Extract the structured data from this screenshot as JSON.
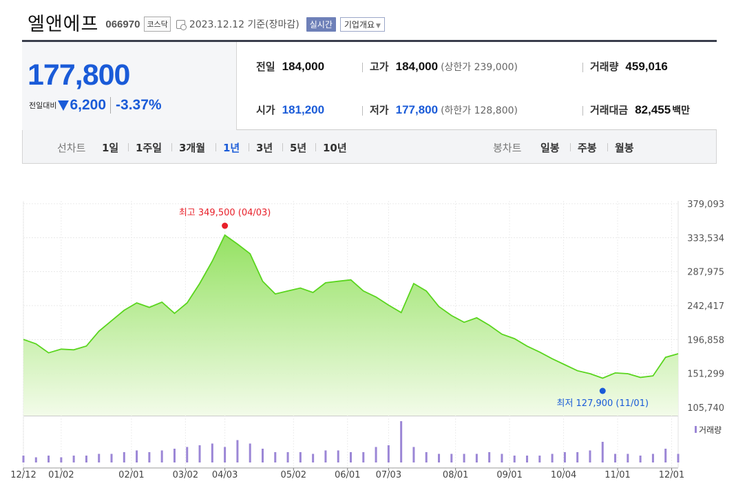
{
  "header": {
    "name": "엘앤에프",
    "code": "066970",
    "market": "코스닥",
    "date": "2023.12.12 기준(장마감)",
    "realtime": "실시간",
    "overview": "기업개요"
  },
  "quote": {
    "price": "177,800",
    "change_label": "전일대비",
    "change": "6,200",
    "percent": "-3.37%",
    "prev_close_label": "전일",
    "prev_close": "184,000",
    "high_label": "고가",
    "high": "184,000",
    "upper_limit": "(상한가 239,000)",
    "volume_label": "거래량",
    "volume": "459,016",
    "open_label": "시가",
    "open": "181,200",
    "low_label": "저가",
    "low": "177,800",
    "lower_limit": "(하한가 128,800)",
    "amount_label": "거래대금",
    "amount": "82,455",
    "amount_unit": "백만"
  },
  "tabs": {
    "line_label": "선차트",
    "line_periods": [
      "1일",
      "1주일",
      "3개월",
      "1년",
      "3년",
      "5년",
      "10년"
    ],
    "selected": "1년",
    "candle_label": "봉차트",
    "candle_periods": [
      "일봉",
      "주봉",
      "월봉"
    ]
  },
  "colors": {
    "accent_blue": "#1a5bd8",
    "line_green": "#5ad51e",
    "volume_purple": "#9b86d6",
    "high_red": "#e8202a"
  },
  "chart_data": {
    "type": "area",
    "x": [
      "12/12",
      "12/19",
      "12/26",
      "01/02",
      "01/09",
      "01/16",
      "01/23",
      "01/30",
      "02/06",
      "02/13",
      "02/20",
      "02/27",
      "03/06",
      "03/13",
      "03/20",
      "03/27",
      "04/03",
      "04/10",
      "04/17",
      "04/24",
      "05/01",
      "05/08",
      "05/15",
      "05/22",
      "05/29",
      "06/05",
      "06/12",
      "06/19",
      "06/26",
      "07/03",
      "07/10",
      "07/17",
      "07/24",
      "07/31",
      "08/07",
      "08/14",
      "08/21",
      "08/28",
      "09/04",
      "09/11",
      "09/18",
      "09/25",
      "10/02",
      "10/09",
      "10/16",
      "10/23",
      "10/30",
      "11/06",
      "11/13",
      "11/20",
      "11/27",
      "12/04",
      "12/11"
    ],
    "values": [
      197000,
      191000,
      179000,
      184000,
      183000,
      188000,
      208000,
      222000,
      236000,
      246000,
      240000,
      247000,
      232000,
      246000,
      272000,
      302000,
      337000,
      325000,
      312000,
      275000,
      258000,
      262000,
      266000,
      260000,
      273000,
      275000,
      277000,
      262000,
      254000,
      243000,
      233000,
      272000,
      262000,
      241000,
      229000,
      220000,
      226000,
      216000,
      204000,
      198000,
      188000,
      180000,
      171000,
      163000,
      155000,
      151000,
      145000,
      152000,
      151000,
      146000,
      148000,
      173000,
      177800
    ],
    "y_ticks": [
      "379,093",
      "333,534",
      "287,975",
      "242,417",
      "196,858",
      "151,299",
      "105,740"
    ],
    "ylim": [
      105740,
      379093
    ],
    "x_tick_labels": [
      "12/12",
      "01/02",
      "02/01",
      "03/02",
      "04/03",
      "05/02",
      "06/01",
      "07/03",
      "08/01",
      "09/01",
      "10/04",
      "11/01",
      "12/01"
    ],
    "high_label": "최고 349,500 (04/03)",
    "low_label": "최저 127,900 (11/01)",
    "volume_label": "거래량",
    "volume": [
      4,
      3,
      4,
      3,
      4,
      4,
      5,
      5,
      6,
      7,
      6,
      7,
      8,
      9,
      10,
      11,
      9,
      13,
      11,
      8,
      6,
      6,
      6,
      5,
      7,
      7,
      6,
      6,
      9,
      10,
      24,
      9,
      6,
      5,
      5,
      5,
      5,
      6,
      5,
      4,
      4,
      4,
      5,
      6,
      6,
      7,
      12,
      5,
      5,
      4,
      5,
      8,
      5
    ]
  }
}
